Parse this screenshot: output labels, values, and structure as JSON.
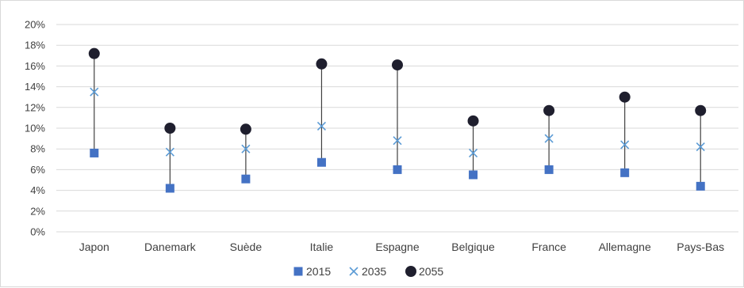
{
  "chart_data": {
    "type": "scatter",
    "title": "",
    "xlabel": "",
    "ylabel": "",
    "categories": [
      "Japon",
      "Danemark",
      "Suède",
      "Italie",
      "Espagne",
      "Belgique",
      "France",
      "Allemagne",
      "Pays-Bas"
    ],
    "ylim": [
      0,
      20
    ],
    "yticks": [
      "0%",
      "2%",
      "4%",
      "6%",
      "8%",
      "10%",
      "12%",
      "14%",
      "16%",
      "18%",
      "20%"
    ],
    "grid": true,
    "legend_position": "bottom",
    "series": [
      {
        "name": "2015",
        "marker": "square",
        "color": "#4472c4",
        "values": [
          7.6,
          4.2,
          5.1,
          6.7,
          6.0,
          5.5,
          6.0,
          5.7,
          4.4
        ]
      },
      {
        "name": "2035",
        "marker": "x",
        "color": "#5b9bd5",
        "values": [
          13.5,
          7.7,
          8.0,
          10.2,
          8.8,
          7.6,
          9.0,
          8.4,
          8.2
        ]
      },
      {
        "name": "2055",
        "marker": "circle",
        "color": "#1f1f2e",
        "values": [
          17.2,
          10.0,
          9.9,
          16.2,
          16.1,
          10.7,
          11.7,
          13.0,
          11.7
        ]
      }
    ],
    "connector_color": "#404040"
  }
}
